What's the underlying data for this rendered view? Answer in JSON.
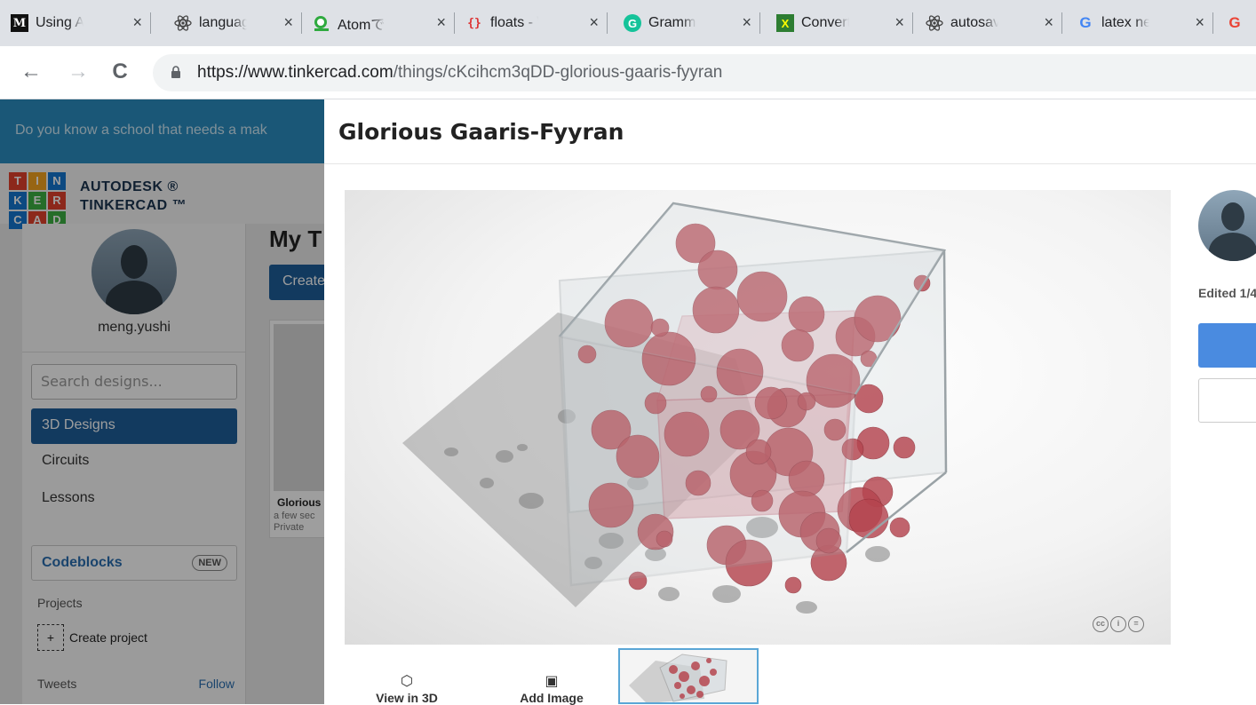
{
  "browser": {
    "tabs": [
      {
        "title": "Using At",
        "icon": "medium-icon"
      },
      {
        "title": "languag",
        "icon": "atom-icon"
      },
      {
        "title": "Atomで",
        "icon": "atom-green-icon"
      },
      {
        "title": "floats - \\",
        "icon": "braces-icon"
      },
      {
        "title": "Gramma",
        "icon": "grammarly-icon"
      },
      {
        "title": "Converti",
        "icon": "convert-icon"
      },
      {
        "title": "autosav",
        "icon": "atom-icon"
      },
      {
        "title": "latex ne",
        "icon": "google-icon"
      },
      {
        "title": "",
        "icon": "google-icon"
      }
    ],
    "tab_close": "×",
    "url_host": "https://www.tinkercad.com",
    "url_path": "/things/cKcihcm3qDD-glorious-gaaris-fyyran",
    "back": "←",
    "forward": "→",
    "reload": "C"
  },
  "page": {
    "banner_text": "Do you know a school that needs a mak",
    "brand_line1": "AUTODESK ®",
    "brand_line2": "TINKERCAD ™",
    "logo_letters": [
      "T",
      "I",
      "N",
      "K",
      "E",
      "R",
      "C",
      "A",
      "D"
    ],
    "username": "meng.yushi",
    "search_placeholder": "Search designs...",
    "nav": [
      "3D Designs",
      "Circuits",
      "Lessons"
    ],
    "codeblocks_label": "Codeblocks",
    "codeblocks_badge": "NEW",
    "projects_label": "Projects",
    "create_project": "Create project",
    "tweets_label": "Tweets",
    "follow_label": "Follow",
    "my_title": "My T",
    "create_button": "Create",
    "card_title": "Glorious",
    "card_time": "a few sec",
    "card_privacy": "Private"
  },
  "modal": {
    "title": "Glorious Gaaris-Fyyran",
    "view_3d": "View in 3D",
    "add_image": "Add Image",
    "edited": "Edited 1/4",
    "license_icons": [
      "cc-icon",
      "by-icon",
      "nd-icon"
    ]
  },
  "colors": {
    "sphere": "#b5454f",
    "banner": "#2a8dc0",
    "active_nav": "#1e5e99",
    "primary_button": "#4a8be0"
  }
}
